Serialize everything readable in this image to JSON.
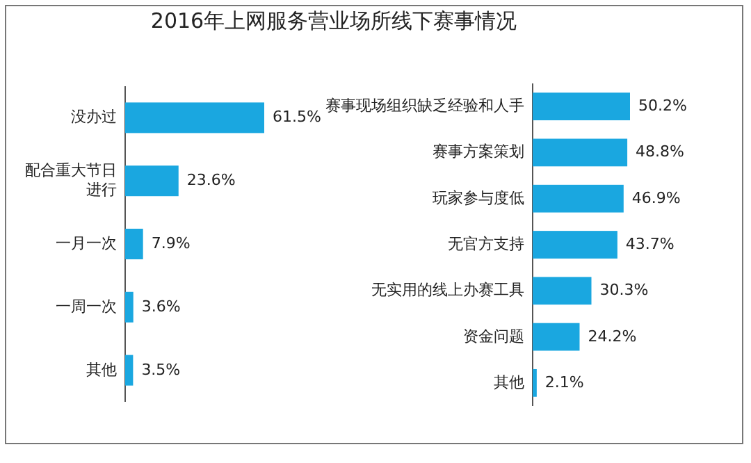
{
  "chart_data": [
    {
      "type": "bar",
      "orientation": "horizontal",
      "title": "2016年上网服务营业场所线下赛事情况",
      "categories": [
        "没办过",
        "配合重大节日进行",
        "一月一次",
        "一周一次",
        "其他"
      ],
      "values": [
        61.5,
        23.6,
        7.9,
        3.6,
        3.5
      ],
      "value_labels": [
        "61.5%",
        "23.6%",
        "7.9%",
        "3.6%",
        "3.5%"
      ],
      "color": "#1aa7e0"
    },
    {
      "type": "bar",
      "orientation": "horizontal",
      "categories": [
        "赛事现场组织缺乏经验和人手",
        "赛事方案策划",
        "玩家参与度低",
        "无官方支持",
        "无实用的线上办赛工具",
        "资金问题",
        "其他"
      ],
      "values": [
        50.2,
        48.8,
        46.9,
        43.7,
        30.3,
        24.2,
        2.1
      ],
      "value_labels": [
        "50.2%",
        "48.8%",
        "46.9%",
        "43.7%",
        "30.3%",
        "24.2%",
        "2.1%"
      ],
      "color": "#1aa7e0"
    }
  ]
}
